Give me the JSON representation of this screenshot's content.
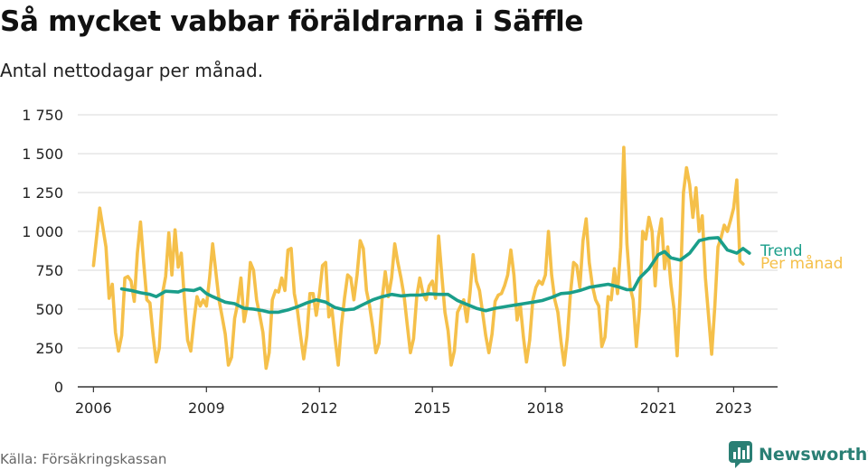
{
  "header": {
    "title": "Så mycket vabbar föräldrarna i Säffle",
    "subtitle": "Antal nettodagar per månad."
  },
  "footer": {
    "source": "Källa: Försäkringskassan",
    "brand": "Newsworthy",
    "brand_icon": "newsworthy-logo-icon"
  },
  "chart_data": {
    "type": "line",
    "title": "Så mycket vabbar föräldrarna i Säffle",
    "subtitle": "Antal nettodagar per månad.",
    "xlabel": "",
    "ylabel": "",
    "ylim": [
      0,
      1750
    ],
    "xlim": [
      "2005-08",
      "2024-03"
    ],
    "y_ticks": [
      0,
      250,
      500,
      750,
      1000,
      1250,
      1500,
      1750
    ],
    "y_tick_labels": [
      "0",
      "250",
      "500",
      "750",
      "1 000",
      "1 250",
      "1 500",
      "1 750"
    ],
    "x_ticks": [
      "2006-01",
      "2009-01",
      "2012-01",
      "2015-01",
      "2018-01",
      "2021-01",
      "2023-01"
    ],
    "x_tick_labels": [
      "2006",
      "2009",
      "2012",
      "2015",
      "2018",
      "2021",
      "2023"
    ],
    "grid": true,
    "legend": "direct labels at right end of lines",
    "series": [
      {
        "name": "Per månad",
        "color": "#f5c04a",
        "points": [
          [
            "2006-01",
            780
          ],
          [
            "2006-03",
            1150
          ],
          [
            "2006-05",
            900
          ],
          [
            "2006-06",
            570
          ],
          [
            "2006-07",
            660
          ],
          [
            "2006-08",
            350
          ],
          [
            "2006-09",
            230
          ],
          [
            "2006-10",
            330
          ],
          [
            "2006-11",
            700
          ],
          [
            "2006-12",
            710
          ],
          [
            "2007-01",
            680
          ],
          [
            "2007-02",
            550
          ],
          [
            "2007-03",
            860
          ],
          [
            "2007-04",
            1060
          ],
          [
            "2007-05",
            800
          ],
          [
            "2007-06",
            560
          ],
          [
            "2007-07",
            540
          ],
          [
            "2007-08",
            330
          ],
          [
            "2007-09",
            160
          ],
          [
            "2007-10",
            250
          ],
          [
            "2007-11",
            600
          ],
          [
            "2007-12",
            710
          ],
          [
            "2008-01",
            990
          ],
          [
            "2008-02",
            720
          ],
          [
            "2008-03",
            1010
          ],
          [
            "2008-04",
            770
          ],
          [
            "2008-05",
            860
          ],
          [
            "2008-06",
            560
          ],
          [
            "2008-07",
            300
          ],
          [
            "2008-08",
            230
          ],
          [
            "2008-09",
            420
          ],
          [
            "2008-10",
            580
          ],
          [
            "2008-11",
            520
          ],
          [
            "2008-12",
            560
          ],
          [
            "2009-01",
            520
          ],
          [
            "2009-02",
            700
          ],
          [
            "2009-03",
            920
          ],
          [
            "2009-04",
            740
          ],
          [
            "2009-05",
            560
          ],
          [
            "2009-06",
            450
          ],
          [
            "2009-07",
            340
          ],
          [
            "2009-08",
            140
          ],
          [
            "2009-09",
            190
          ],
          [
            "2009-10",
            440
          ],
          [
            "2009-11",
            540
          ],
          [
            "2009-12",
            700
          ],
          [
            "2010-01",
            420
          ],
          [
            "2010-02",
            530
          ],
          [
            "2010-03",
            800
          ],
          [
            "2010-04",
            750
          ],
          [
            "2010-05",
            560
          ],
          [
            "2010-06",
            460
          ],
          [
            "2010-07",
            350
          ],
          [
            "2010-08",
            120
          ],
          [
            "2010-09",
            220
          ],
          [
            "2010-10",
            560
          ],
          [
            "2010-11",
            620
          ],
          [
            "2010-12",
            610
          ],
          [
            "2011-01",
            700
          ],
          [
            "2011-02",
            620
          ],
          [
            "2011-03",
            880
          ],
          [
            "2011-04",
            890
          ],
          [
            "2011-05",
            600
          ],
          [
            "2011-06",
            490
          ],
          [
            "2011-07",
            330
          ],
          [
            "2011-08",
            180
          ],
          [
            "2011-09",
            330
          ],
          [
            "2011-10",
            600
          ],
          [
            "2011-11",
            600
          ],
          [
            "2011-12",
            460
          ],
          [
            "2012-01",
            600
          ],
          [
            "2012-02",
            780
          ],
          [
            "2012-03",
            800
          ],
          [
            "2012-04",
            450
          ],
          [
            "2012-05",
            500
          ],
          [
            "2012-06",
            310
          ],
          [
            "2012-07",
            140
          ],
          [
            "2012-08",
            390
          ],
          [
            "2012-09",
            570
          ],
          [
            "2012-10",
            720
          ],
          [
            "2012-11",
            700
          ],
          [
            "2012-12",
            560
          ],
          [
            "2013-01",
            720
          ],
          [
            "2013-02",
            940
          ],
          [
            "2013-03",
            890
          ],
          [
            "2013-04",
            620
          ],
          [
            "2013-05",
            520
          ],
          [
            "2013-06",
            380
          ],
          [
            "2013-07",
            220
          ],
          [
            "2013-08",
            280
          ],
          [
            "2013-09",
            570
          ],
          [
            "2013-10",
            740
          ],
          [
            "2013-11",
            580
          ],
          [
            "2013-12",
            700
          ],
          [
            "2014-01",
            920
          ],
          [
            "2014-02",
            800
          ],
          [
            "2014-03",
            700
          ],
          [
            "2014-04",
            580
          ],
          [
            "2014-05",
            400
          ],
          [
            "2014-06",
            220
          ],
          [
            "2014-07",
            310
          ],
          [
            "2014-08",
            580
          ],
          [
            "2014-09",
            700
          ],
          [
            "2014-10",
            600
          ],
          [
            "2014-11",
            560
          ],
          [
            "2014-12",
            650
          ],
          [
            "2015-01",
            680
          ],
          [
            "2015-02",
            570
          ],
          [
            "2015-03",
            970
          ],
          [
            "2015-04",
            720
          ],
          [
            "2015-05",
            480
          ],
          [
            "2015-06",
            360
          ],
          [
            "2015-07",
            140
          ],
          [
            "2015-08",
            230
          ],
          [
            "2015-09",
            480
          ],
          [
            "2015-10",
            520
          ],
          [
            "2015-11",
            560
          ],
          [
            "2015-12",
            420
          ],
          [
            "2016-01",
            610
          ],
          [
            "2016-02",
            850
          ],
          [
            "2016-03",
            680
          ],
          [
            "2016-04",
            620
          ],
          [
            "2016-05",
            480
          ],
          [
            "2016-06",
            330
          ],
          [
            "2016-07",
            220
          ],
          [
            "2016-08",
            340
          ],
          [
            "2016-09",
            550
          ],
          [
            "2016-10",
            590
          ],
          [
            "2016-11",
            600
          ],
          [
            "2016-12",
            650
          ],
          [
            "2017-01",
            720
          ],
          [
            "2017-02",
            880
          ],
          [
            "2017-03",
            720
          ],
          [
            "2017-04",
            430
          ],
          [
            "2017-05",
            530
          ],
          [
            "2017-06",
            320
          ],
          [
            "2017-07",
            160
          ],
          [
            "2017-08",
            300
          ],
          [
            "2017-09",
            560
          ],
          [
            "2017-10",
            640
          ],
          [
            "2017-11",
            680
          ],
          [
            "2017-12",
            660
          ],
          [
            "2018-01",
            720
          ],
          [
            "2018-02",
            1000
          ],
          [
            "2018-03",
            720
          ],
          [
            "2018-04",
            560
          ],
          [
            "2018-05",
            480
          ],
          [
            "2018-06",
            290
          ],
          [
            "2018-07",
            140
          ],
          [
            "2018-08",
            320
          ],
          [
            "2018-09",
            600
          ],
          [
            "2018-10",
            800
          ],
          [
            "2018-11",
            780
          ],
          [
            "2018-12",
            640
          ],
          [
            "2019-01",
            940
          ],
          [
            "2019-02",
            1080
          ],
          [
            "2019-03",
            800
          ],
          [
            "2019-04",
            650
          ],
          [
            "2019-05",
            560
          ],
          [
            "2019-06",
            520
          ],
          [
            "2019-07",
            260
          ],
          [
            "2019-08",
            320
          ],
          [
            "2019-09",
            580
          ],
          [
            "2019-10",
            560
          ],
          [
            "2019-11",
            760
          ],
          [
            "2019-12",
            600
          ],
          [
            "2020-01",
            900
          ],
          [
            "2020-02",
            1540
          ],
          [
            "2020-03",
            920
          ],
          [
            "2020-04",
            640
          ],
          [
            "2020-05",
            560
          ],
          [
            "2020-06",
            260
          ],
          [
            "2020-07",
            500
          ],
          [
            "2020-08",
            1000
          ],
          [
            "2020-09",
            950
          ],
          [
            "2020-10",
            1090
          ],
          [
            "2020-11",
            1000
          ],
          [
            "2020-12",
            650
          ],
          [
            "2021-01",
            960
          ],
          [
            "2021-02",
            1080
          ],
          [
            "2021-03",
            760
          ],
          [
            "2021-04",
            900
          ],
          [
            "2021-05",
            660
          ],
          [
            "2021-06",
            500
          ],
          [
            "2021-07",
            200
          ],
          [
            "2021-08",
            620
          ],
          [
            "2021-09",
            1250
          ],
          [
            "2021-10",
            1410
          ],
          [
            "2021-11",
            1300
          ],
          [
            "2021-12",
            1090
          ],
          [
            "2022-01",
            1280
          ],
          [
            "2022-02",
            1000
          ],
          [
            "2022-03",
            1100
          ],
          [
            "2022-04",
            700
          ],
          [
            "2022-05",
            460
          ],
          [
            "2022-06",
            210
          ],
          [
            "2022-07",
            520
          ],
          [
            "2022-08",
            900
          ],
          [
            "2022-09",
            960
          ],
          [
            "2022-10",
            1040
          ],
          [
            "2022-11",
            1000
          ],
          [
            "2022-12",
            1070
          ],
          [
            "2023-01",
            1150
          ],
          [
            "2023-02",
            1330
          ],
          [
            "2023-03",
            810
          ],
          [
            "2023-04",
            790
          ]
        ]
      },
      {
        "name": "Trend",
        "color": "#1a9e8a",
        "points": [
          [
            "2006-10",
            630
          ],
          [
            "2007-01",
            620
          ],
          [
            "2007-04",
            605
          ],
          [
            "2007-07",
            595
          ],
          [
            "2007-09",
            580
          ],
          [
            "2007-12",
            615
          ],
          [
            "2008-04",
            610
          ],
          [
            "2008-06",
            625
          ],
          [
            "2008-09",
            620
          ],
          [
            "2008-11",
            635
          ],
          [
            "2009-01",
            600
          ],
          [
            "2009-03",
            580
          ],
          [
            "2009-07",
            545
          ],
          [
            "2009-10",
            535
          ],
          [
            "2010-01",
            505
          ],
          [
            "2010-04",
            500
          ],
          [
            "2010-07",
            490
          ],
          [
            "2010-09",
            480
          ],
          [
            "2010-12",
            480
          ],
          [
            "2011-03",
            495
          ],
          [
            "2011-06",
            515
          ],
          [
            "2011-09",
            540
          ],
          [
            "2011-12",
            560
          ],
          [
            "2012-03",
            545
          ],
          [
            "2012-06",
            510
          ],
          [
            "2012-09",
            495
          ],
          [
            "2012-12",
            500
          ],
          [
            "2013-03",
            530
          ],
          [
            "2013-06",
            560
          ],
          [
            "2013-09",
            580
          ],
          [
            "2013-12",
            595
          ],
          [
            "2014-03",
            585
          ],
          [
            "2014-06",
            590
          ],
          [
            "2014-09",
            590
          ],
          [
            "2014-12",
            598
          ],
          [
            "2015-03",
            595
          ],
          [
            "2015-06",
            595
          ],
          [
            "2015-09",
            555
          ],
          [
            "2015-12",
            530
          ],
          [
            "2016-03",
            505
          ],
          [
            "2016-06",
            490
          ],
          [
            "2016-09",
            505
          ],
          [
            "2016-12",
            515
          ],
          [
            "2017-03",
            525
          ],
          [
            "2017-06",
            535
          ],
          [
            "2017-09",
            545
          ],
          [
            "2017-12",
            555
          ],
          [
            "2018-03",
            575
          ],
          [
            "2018-06",
            600
          ],
          [
            "2018-09",
            605
          ],
          [
            "2018-12",
            620
          ],
          [
            "2019-03",
            640
          ],
          [
            "2019-06",
            650
          ],
          [
            "2019-09",
            660
          ],
          [
            "2019-12",
            645
          ],
          [
            "2020-03",
            625
          ],
          [
            "2020-05",
            625
          ],
          [
            "2020-07",
            700
          ],
          [
            "2020-10",
            760
          ],
          [
            "2021-01",
            850
          ],
          [
            "2021-03",
            870
          ],
          [
            "2021-05",
            830
          ],
          [
            "2021-08",
            815
          ],
          [
            "2021-11",
            860
          ],
          [
            "2022-02",
            940
          ],
          [
            "2022-05",
            955
          ],
          [
            "2022-08",
            960
          ],
          [
            "2022-11",
            880
          ],
          [
            "2023-02",
            860
          ],
          [
            "2023-04",
            890
          ],
          [
            "2023-06",
            860
          ]
        ]
      }
    ]
  }
}
